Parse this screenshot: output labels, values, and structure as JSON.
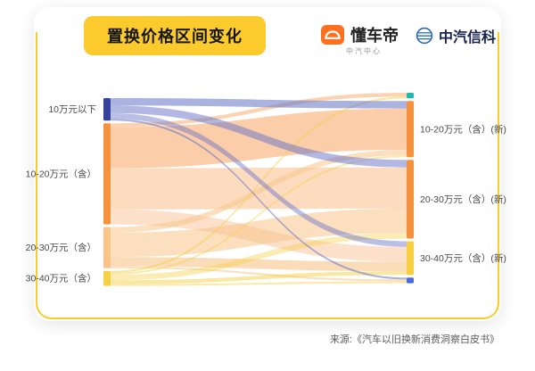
{
  "title": "置换价格区间变化",
  "header": {
    "dongchedi": "懂车帝",
    "dongchedi_sub": "中汽中心",
    "catarc": "中汽信科"
  },
  "footer": {
    "source": "来源:《汽车以旧换新消费洞察白皮书》"
  },
  "colors": {
    "badge_yellow": "#FBCB2D",
    "frame_yellow": "#F9CB2C",
    "dongchedi_orange": "#FF6F1E",
    "catarc_blue": "#2B6BB8"
  },
  "chart_data": {
    "type": "sankey",
    "title": "置换价格区间变化",
    "left_nodes": [
      {
        "label": "10万元以下",
        "value": 12,
        "color": "#36429B"
      },
      {
        "label": "10-20万元（含）",
        "value": 54,
        "color": "#F6913E"
      },
      {
        "label": "20-30万元（含）",
        "value": 22,
        "color": "#F8C489"
      },
      {
        "label": "30-40万元（含）",
        "value": 8,
        "color": "#F6D044"
      }
    ],
    "right_nodes": [
      {
        "label": "",
        "value": 3,
        "color": "#1FB9A5"
      },
      {
        "label": "10-20万元（含）(新)",
        "value": 30,
        "color": "#F6913E"
      },
      {
        "label": "20-30万元（含）(新)",
        "value": 42,
        "color": "#F6913E"
      },
      {
        "label": "30-40万元（含）(新)",
        "value": 18,
        "color": "#F6CE3F"
      },
      {
        "label": "",
        "value": 3,
        "color": "#4A6BDB"
      }
    ],
    "links": [
      {
        "source": 1,
        "target": 0,
        "value": 2,
        "color": "rgba(246,145,62,0.40)"
      },
      {
        "source": 1,
        "target": 1,
        "value": 22,
        "color": "rgba(246,145,62,0.45)"
      },
      {
        "source": 1,
        "target": 2,
        "value": 22,
        "color": "rgba(246,145,62,0.33)"
      },
      {
        "source": 1,
        "target": 3,
        "value": 8,
        "color": "rgba(246,145,62,0.28)"
      },
      {
        "source": 2,
        "target": 1,
        "value": 3,
        "color": "rgba(248,196,137,0.55)"
      },
      {
        "source": 2,
        "target": 2,
        "value": 13,
        "color": "rgba(248,196,137,0.55)"
      },
      {
        "source": 2,
        "target": 3,
        "value": 5,
        "color": "rgba(248,196,137,0.60)"
      },
      {
        "source": 2,
        "target": 4,
        "value": 1,
        "color": "rgba(248,196,137,0.55)"
      },
      {
        "source": 3,
        "target": 0,
        "value": 1,
        "color": "rgba(246,208,68,0.55)"
      },
      {
        "source": 3,
        "target": 1,
        "value": 1,
        "color": "rgba(246,208,68,0.45)"
      },
      {
        "source": 3,
        "target": 2,
        "value": 3,
        "color": "rgba(246,208,68,0.40)"
      },
      {
        "source": 3,
        "target": 3,
        "value": 2,
        "color": "rgba(246,208,68,0.50)"
      },
      {
        "source": 3,
        "target": 4,
        "value": 1,
        "color": "rgba(246,208,68,0.45)"
      },
      {
        "source": 0,
        "target": 1,
        "value": 4,
        "color": "rgba(101,114,199,0.55)"
      },
      {
        "source": 0,
        "target": 2,
        "value": 4,
        "color": "rgba(101,114,199,0.50)"
      },
      {
        "source": 0,
        "target": 3,
        "value": 3,
        "color": "rgba(101,114,199,0.45)"
      },
      {
        "source": 0,
        "target": 4,
        "value": 1,
        "color": "rgba(101,114,199,0.55)"
      }
    ]
  }
}
